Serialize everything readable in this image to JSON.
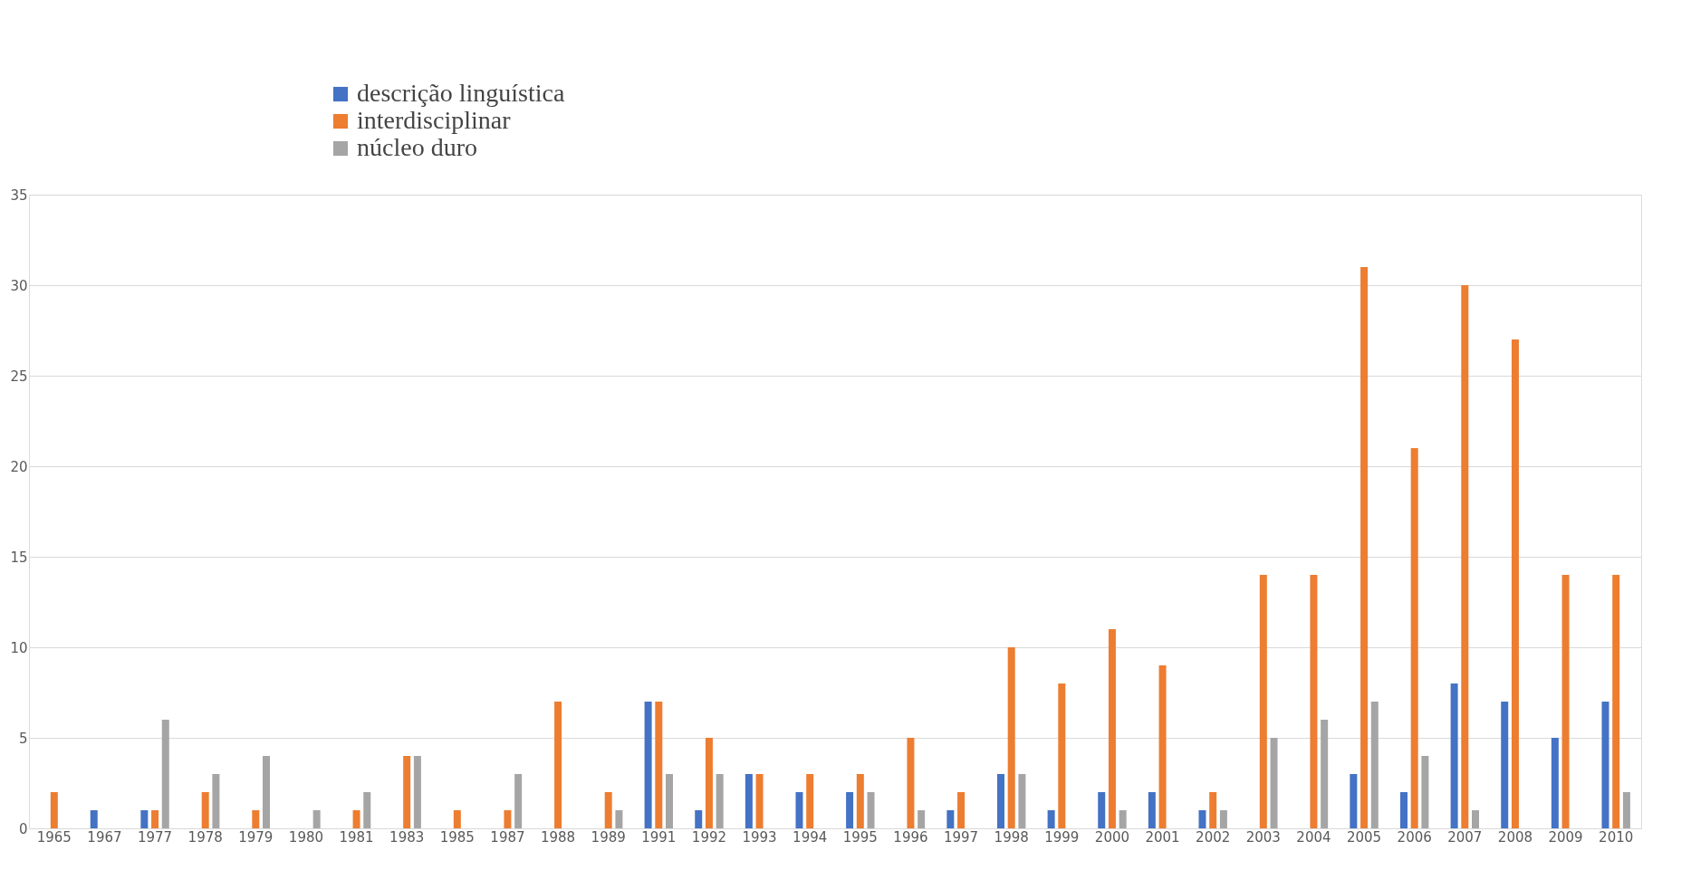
{
  "chart_data": {
    "type": "bar",
    "categories": [
      "1965",
      "1967",
      "1977",
      "1978",
      "1979",
      "1980",
      "1981",
      "1983",
      "1985",
      "1987",
      "1988",
      "1989",
      "1991",
      "1992",
      "1993",
      "1994",
      "1995",
      "1996",
      "1997",
      "1998",
      "1999",
      "2000",
      "2001",
      "2002",
      "2003",
      "2004",
      "2005",
      "2006",
      "2007",
      "2008",
      "2009",
      "2010"
    ],
    "series": [
      {
        "name": "descrição linguística",
        "color": "#4472c4",
        "values": [
          0,
          1,
          1,
          0,
          0,
          0,
          0,
          0,
          0,
          0,
          0,
          0,
          7,
          1,
          3,
          2,
          2,
          0,
          1,
          3,
          1,
          2,
          2,
          1,
          0,
          0,
          3,
          2,
          8,
          7,
          5,
          7
        ]
      },
      {
        "name": "interdisciplinar",
        "color": "#ed7d31",
        "values": [
          2,
          0,
          1,
          2,
          1,
          0,
          1,
          4,
          1,
          1,
          7,
          2,
          7,
          5,
          3,
          3,
          3,
          5,
          2,
          10,
          8,
          11,
          9,
          2,
          14,
          14,
          31,
          21,
          30,
          27,
          14,
          14
        ]
      },
      {
        "name": "núcleo duro",
        "color": "#a5a5a5",
        "values": [
          0,
          0,
          6,
          3,
          4,
          1,
          2,
          4,
          0,
          3,
          0,
          1,
          3,
          3,
          0,
          0,
          2,
          1,
          0,
          3,
          0,
          1,
          0,
          1,
          5,
          6,
          7,
          4,
          1,
          0,
          0,
          2
        ]
      }
    ],
    "ylim": [
      0,
      35
    ],
    "yticks": [
      0,
      5,
      10,
      15,
      20,
      25,
      30,
      35
    ],
    "grid": "y",
    "legend": "top left"
  }
}
